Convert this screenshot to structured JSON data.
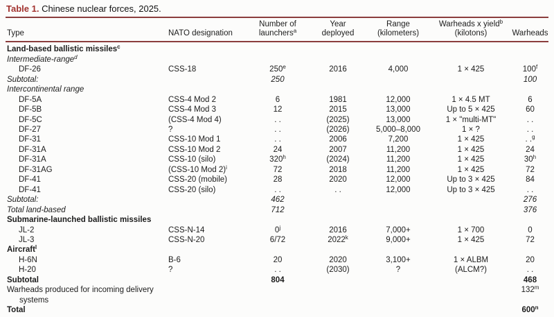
{
  "title": {
    "label": "Table 1.",
    "text": " Chinese nuclear forces, 2025."
  },
  "colors": {
    "title_accent": "#a2332f",
    "rule": "#8b3d3d",
    "rule_bottom": "#96696c"
  },
  "table": {
    "columns": [
      {
        "key": "type",
        "label": "Type",
        "align": "left"
      },
      {
        "key": "nato",
        "label": "NATO designation",
        "align": "left"
      },
      {
        "key": "launchers",
        "label": "Number of\nlaunchers^a",
        "align": "center"
      },
      {
        "key": "year",
        "label": "Year\ndeployed",
        "align": "center"
      },
      {
        "key": "range",
        "label": "Range\n(kilometers)",
        "align": "center"
      },
      {
        "key": "yield",
        "label": "Warheads x yield^b\n(kilotons)",
        "align": "center"
      },
      {
        "key": "warheads",
        "label": "Warheads",
        "align": "center"
      }
    ],
    "rows": [
      {
        "style": "section",
        "cells": [
          "Land-based ballistic missiles^c",
          "",
          "",
          "",
          "",
          "",
          ""
        ]
      },
      {
        "style": "subsection",
        "cells": [
          "Intermediate-range^d",
          "",
          "",
          "",
          "",
          "",
          ""
        ]
      },
      {
        "style": "data",
        "cells": [
          "DF-26",
          "CSS-18",
          "250^e",
          "2016",
          "4,000",
          "1 × 425",
          "100^f"
        ]
      },
      {
        "style": "subtotal",
        "cells": [
          "Subtotal:",
          "",
          "250",
          "",
          "",
          "",
          "100"
        ]
      },
      {
        "style": "subsection",
        "cells": [
          "Intercontinental range",
          "",
          "",
          "",
          "",
          "",
          ""
        ]
      },
      {
        "style": "data",
        "cells": [
          "DF-5A",
          "CSS-4 Mod 2",
          "6",
          "1981",
          "12,000",
          "1 × 4.5 MT",
          "6"
        ]
      },
      {
        "style": "data",
        "cells": [
          "DF-5B",
          "CSS-4 Mod 3",
          "12",
          "2015",
          "13,000",
          "Up to 5 × 425",
          "60"
        ]
      },
      {
        "style": "data",
        "cells": [
          "DF-5C",
          "(CSS-4 Mod 4)",
          ". .",
          "(2025)",
          "13,000",
          "1 × \"multi-MT\"",
          ". ."
        ]
      },
      {
        "style": "data",
        "cells": [
          "DF-27",
          "?",
          ". .",
          "(2026)",
          "5,000–8,000",
          "1 × ?",
          ". ."
        ]
      },
      {
        "style": "data",
        "cells": [
          "DF-31",
          "CSS-10 Mod 1",
          ". .",
          "2006",
          "7,200",
          "1 × 425",
          ". .^g"
        ]
      },
      {
        "style": "data",
        "cells": [
          "DF-31A",
          "CSS-10 Mod 2",
          "24",
          "2007",
          "11,200",
          "1 × 425",
          "24"
        ]
      },
      {
        "style": "data",
        "cells": [
          "DF-31A",
          "CSS-10 (silo)",
          "320^h",
          "(2024)",
          "11,200",
          "1 × 425",
          "30^h"
        ]
      },
      {
        "style": "data",
        "cells": [
          "DF-31AG",
          "(CSS-10 Mod 2)^i",
          "72",
          "2018",
          "11,200",
          "1 × 425",
          "72"
        ]
      },
      {
        "style": "data",
        "cells": [
          "DF-41",
          "CSS-20 (mobile)",
          "28",
          "2020",
          "12,000",
          "Up to 3 × 425",
          "84"
        ]
      },
      {
        "style": "data",
        "cells": [
          "DF-41",
          "CSS-20 (silo)",
          ". .",
          ". .",
          "12,000",
          "Up to 3 × 425",
          ". ."
        ]
      },
      {
        "style": "subtotal",
        "cells": [
          "Subtotal:",
          "",
          "462",
          "",
          "",
          "",
          "276"
        ]
      },
      {
        "style": "subtotal",
        "cells": [
          "Total land-based",
          "",
          "712",
          "",
          "",
          "",
          "376"
        ]
      },
      {
        "style": "section",
        "cells": [
          "Submarine-launched ballistic missiles",
          "",
          "",
          "",
          "",
          "",
          ""
        ]
      },
      {
        "style": "data",
        "cells": [
          "JL-2",
          "CSS-N-14",
          "0^j",
          "2016",
          "7,000+",
          "1 × 700",
          "0"
        ]
      },
      {
        "style": "data",
        "cells": [
          "JL-3",
          "CSS-N-20",
          "6/72",
          "2022^k",
          "9,000+",
          "1 × 425",
          "72"
        ]
      },
      {
        "style": "section",
        "cells": [
          "Aircraft^l",
          "",
          "",
          "",
          "",
          "",
          ""
        ]
      },
      {
        "style": "data",
        "cells": [
          "H-6N",
          "B-6",
          "20",
          "2020",
          "3,100+",
          "1 × ALBM",
          "20"
        ]
      },
      {
        "style": "data",
        "cells": [
          "H-20",
          "?",
          ". .",
          "(2030)",
          "?",
          "(ALCM?)",
          ". ."
        ]
      },
      {
        "style": "bold",
        "cells": [
          "Subtotal",
          "",
          "804",
          "",
          "",
          "",
          "468"
        ]
      },
      {
        "style": "plain-wrap",
        "cells": [
          "Warheads produced for incoming delivery systems",
          "",
          "",
          "",
          "",
          "",
          "132^m"
        ]
      },
      {
        "style": "bold",
        "cells": [
          "Total",
          "",
          "",
          "",
          "",
          "",
          "600^n"
        ]
      }
    ]
  }
}
